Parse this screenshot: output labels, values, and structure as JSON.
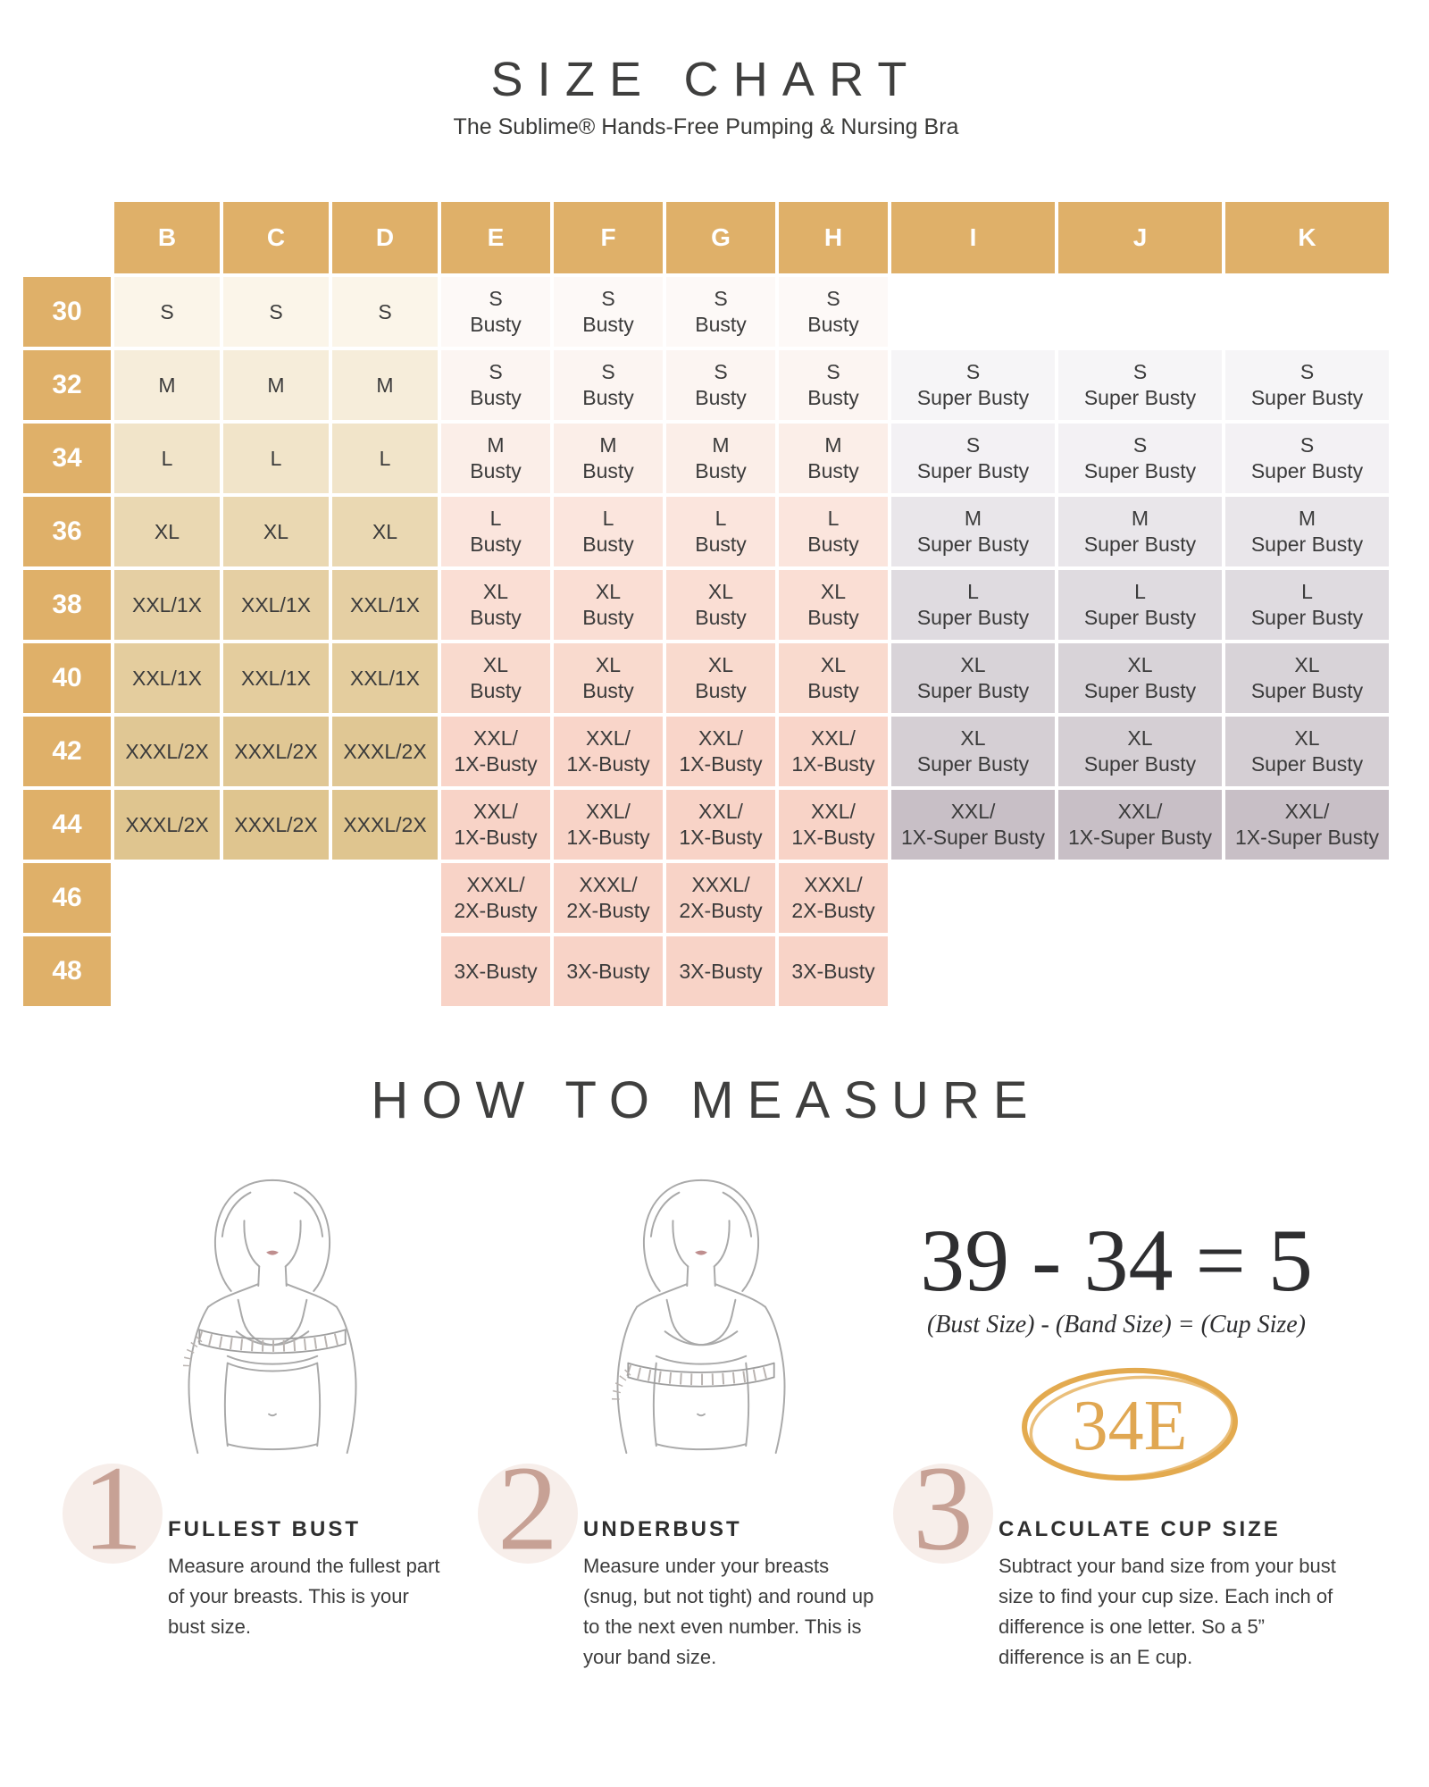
{
  "chart_data": {
    "type": "table",
    "title": "SIZE CHART",
    "subtitle": "The Sublime® Hands-Free Pumping & Nursing Bra",
    "columns": [
      "B",
      "C",
      "D",
      "E",
      "F",
      "G",
      "H",
      "I",
      "J",
      "K"
    ],
    "rows": [
      {
        "band": "30",
        "cells": [
          "S",
          "S",
          "S",
          "S\nBusty",
          "S\nBusty",
          "S\nBusty",
          "S\nBusty",
          "",
          "",
          ""
        ]
      },
      {
        "band": "32",
        "cells": [
          "M",
          "M",
          "M",
          "S\nBusty",
          "S\nBusty",
          "S\nBusty",
          "S\nBusty",
          "S\nSuper Busty",
          "S\nSuper Busty",
          "S\nSuper Busty"
        ]
      },
      {
        "band": "34",
        "cells": [
          "L",
          "L",
          "L",
          "M\nBusty",
          "M\nBusty",
          "M\nBusty",
          "M\nBusty",
          "S\nSuper Busty",
          "S\nSuper Busty",
          "S\nSuper Busty"
        ]
      },
      {
        "band": "36",
        "cells": [
          "XL",
          "XL",
          "XL",
          "L\nBusty",
          "L\nBusty",
          "L\nBusty",
          "L\nBusty",
          "M\nSuper Busty",
          "M\nSuper Busty",
          "M\nSuper Busty"
        ]
      },
      {
        "band": "38",
        "cells": [
          "XXL/1X",
          "XXL/1X",
          "XXL/1X",
          "XL\nBusty",
          "XL\nBusty",
          "XL\nBusty",
          "XL\nBusty",
          "L\nSuper Busty",
          "L\nSuper Busty",
          "L\nSuper Busty"
        ]
      },
      {
        "band": "40",
        "cells": [
          "XXL/1X",
          "XXL/1X",
          "XXL/1X",
          "XL\nBusty",
          "XL\nBusty",
          "XL\nBusty",
          "XL\nBusty",
          "XL\nSuper Busty",
          "XL\nSuper Busty",
          "XL\nSuper Busty"
        ]
      },
      {
        "band": "42",
        "cells": [
          "XXXL/2X",
          "XXXL/2X",
          "XXXL/2X",
          "XXL/\n1X-Busty",
          "XXL/\n1X-Busty",
          "XXL/\n1X-Busty",
          "XXL/\n1X-Busty",
          "XL\nSuper Busty",
          "XL\nSuper Busty",
          "XL\nSuper Busty"
        ]
      },
      {
        "band": "44",
        "cells": [
          "XXXL/2X",
          "XXXL/2X",
          "XXXL/2X",
          "XXL/\n1X-Busty",
          "XXL/\n1X-Busty",
          "XXL/\n1X-Busty",
          "XXL/\n1X-Busty",
          "XXL/\n1X-Super Busty",
          "XXL/\n1X-Super Busty",
          "XXL/\n1X-Super Busty"
        ]
      },
      {
        "band": "46",
        "cells": [
          "",
          "",
          "",
          "XXXL/\n2X-Busty",
          "XXXL/\n2X-Busty",
          "XXXL/\n2X-Busty",
          "XXXL/\n2X-Busty",
          "",
          "",
          ""
        ]
      },
      {
        "band": "48",
        "cells": [
          "",
          "",
          "",
          "3X-Busty",
          "3X-Busty",
          "3X-Busty",
          "3X-Busty",
          "",
          "",
          ""
        ]
      }
    ],
    "cell_colors": [
      {
        "bcd": "#FBF5E9",
        "efgh": "#FDF9F7",
        "ijk": null
      },
      {
        "bcd": "#F6EDDA",
        "efgh": "#FCF5F2",
        "ijk": "#F6F5F7"
      },
      {
        "bcd": "#F1E4C9",
        "efgh": "#FBEEE8",
        "ijk": "#F3F1F4"
      },
      {
        "bcd": "#EAD8B2",
        "efgh": "#FBE5DD",
        "ijk": "#E9E6EA"
      },
      {
        "bcd": "#E5CFA3",
        "efgh": "#FADED4",
        "ijk": "#DFDBE0"
      },
      {
        "bcd": "#E4CD9E",
        "efgh": "#F9DACE",
        "ijk": "#D8D3D8"
      },
      {
        "bcd": "#E0C794",
        "efgh": "#F9D5C9",
        "ijk": "#D5CFD4"
      },
      {
        "bcd": "#DFC58F",
        "efgh": "#F8D3C7",
        "ijk": "#C8BFC6"
      },
      {
        "bcd": null,
        "efgh": "#F8D3C7",
        "ijk": null
      },
      {
        "bcd": null,
        "efgh": "#F8D3C7",
        "ijk": null
      }
    ]
  },
  "how_to_measure": {
    "title": "HOW TO MEASURE",
    "formula": {
      "equation": "39 - 34 = 5",
      "labels": "(Bust Size)  -  (Band Size) = (Cup Size)"
    },
    "result_badge": "34E",
    "steps": [
      {
        "number": "1",
        "title": "FULLEST BUST",
        "description": "Measure around the fullest part of your breasts. This is your bust size."
      },
      {
        "number": "2",
        "title": "UNDERBUST",
        "description": "Measure under your breasts (snug, but not tight) and round up to the next even number. This is your band size."
      },
      {
        "number": "3",
        "title": "CALCULATE CUP SIZE",
        "description": "Subtract your band size from your bust size to find your cup size. Each inch of difference is one letter. So a 5” difference is an E cup."
      }
    ]
  },
  "colors": {
    "gold": "#DFB069",
    "cell_text": "#3B3B3B",
    "badge_gold": "#E0A752",
    "step_number": "#C7A195",
    "step_circle": "#F7EEEA",
    "illustration_line": "#A9A9A9",
    "lips": "#BF8E8E"
  }
}
